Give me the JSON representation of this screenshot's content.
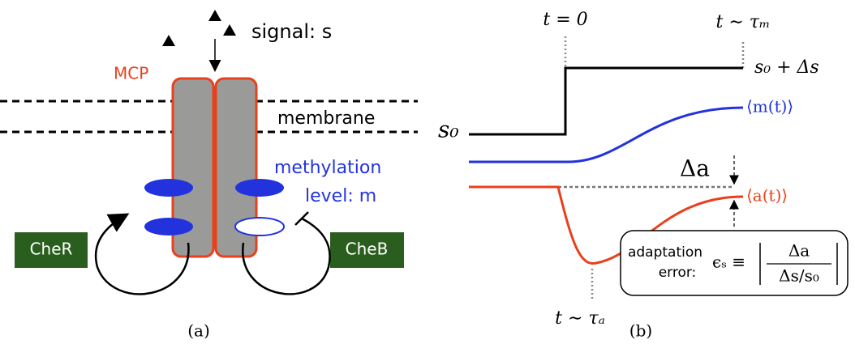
{
  "panel_a": {
    "signal": "signal: s",
    "mcp": "MCP",
    "membrane": "membrane",
    "methylation": "methylation",
    "level": "level: m",
    "cher": "CheR",
    "cheb": "CheB",
    "caption": "(a)"
  },
  "panel_b": {
    "t0": "t = 0",
    "t_m": "t ∼ τₘ",
    "s_final": "s₀ + Δs",
    "m_label": "⟨m(t)⟩",
    "s0": "s₀",
    "delta_a": "Δa",
    "a_label": "⟨a(t)⟩",
    "box_label_1": "adaptation",
    "box_label_2": "error:",
    "formula_lhs": "ϵₛ ≡",
    "formula_num": "Δa",
    "formula_den": "Δs/s₀",
    "t_a": "t ∼ τₐ",
    "caption": "(b)"
  }
}
